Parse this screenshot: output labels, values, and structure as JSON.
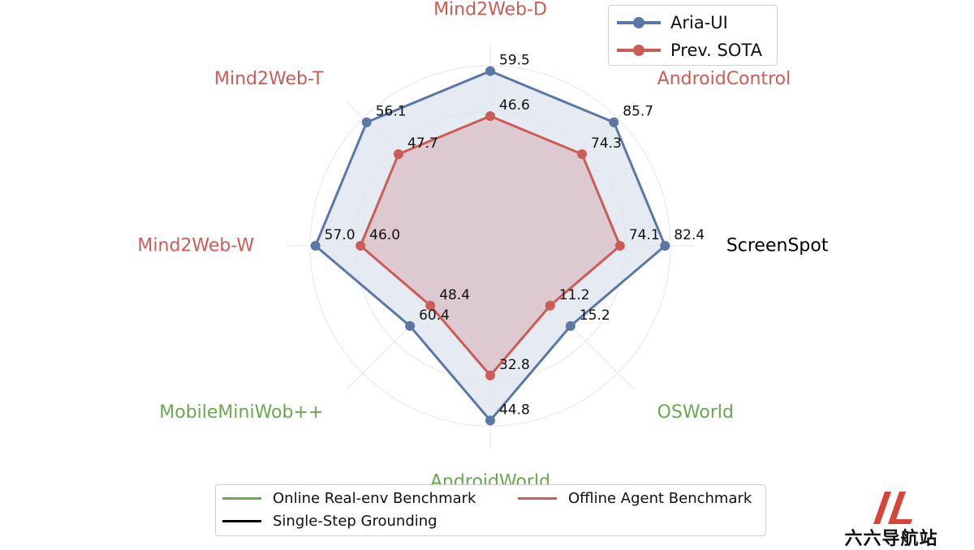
{
  "chart_data": {
    "type": "radar",
    "axes": [
      {
        "label": "Mind2Web-D",
        "group": "offline"
      },
      {
        "label": "AndroidControl",
        "group": "offline"
      },
      {
        "label": "ScreenSpot",
        "group": "grounding"
      },
      {
        "label": "OSWorld",
        "group": "online"
      },
      {
        "label": "AndroidWorld",
        "group": "online"
      },
      {
        "label": "MobileMiniWob++",
        "group": "online"
      },
      {
        "label": "Mind2Web-W",
        "group": "offline"
      },
      {
        "label": "Mind2Web-T",
        "group": "offline"
      }
    ],
    "series": [
      {
        "name": "Aria-UI",
        "color": "#5a77a6",
        "fill": "#dde4ef",
        "values": [
          59.5,
          85.7,
          82.4,
          15.2,
          44.8,
          60.4,
          57.0,
          56.1
        ],
        "labels": [
          "59.5",
          "85.7",
          "82.4",
          "15.2",
          "44.8",
          "60.4",
          "57.0",
          "56.1"
        ],
        "radius": [
          0.97,
          0.97,
          0.97,
          0.63,
          0.97,
          0.63,
          0.97,
          0.97
        ]
      },
      {
        "name": "Prev. SOTA",
        "color": "#cc5c56",
        "fill": "#dbc3c9",
        "values": [
          46.6,
          74.3,
          74.1,
          11.2,
          32.8,
          48.4,
          46.0,
          47.7
        ],
        "labels": [
          "46.6",
          "74.3",
          "74.1",
          "11.2",
          "32.8",
          "48.4",
          "46.0",
          "47.7"
        ],
        "radius": [
          0.72,
          0.72,
          0.72,
          0.47,
          0.72,
          0.47,
          0.72,
          0.72
        ]
      }
    ],
    "group_legend": [
      {
        "key": "online",
        "label": "Online Real-env Benchmark",
        "color": "#6aa84f"
      },
      {
        "key": "offline",
        "label": "Offline Agent Benchmark",
        "color": "#cc5c56"
      },
      {
        "key": "grounding",
        "label": "Single-Step Grounding",
        "color": "#000000"
      }
    ],
    "grid": true,
    "legend_position": "top-right"
  },
  "watermark": {
    "text": "六六导航站"
  }
}
